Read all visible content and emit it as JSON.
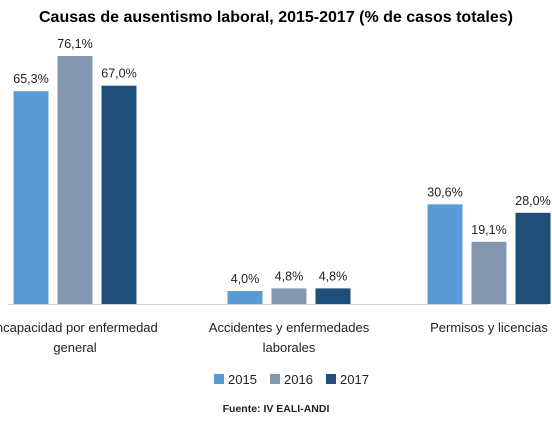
{
  "chart_data": {
    "type": "bar",
    "title": "Causas de ausentismo laboral, 2015-2017 (% de casos totales)",
    "categories": [
      [
        "Incapacidad por enfermedad",
        "general"
      ],
      [
        "Accidentes y enfermedades",
        "laborales"
      ],
      [
        "Permisos y licencias"
      ]
    ],
    "series": [
      {
        "name": "2015",
        "color": "#5b9bd5",
        "values": [
          65.3,
          4.0,
          30.6
        ],
        "labels": [
          "65,3%",
          "4,0%",
          "30,6%"
        ]
      },
      {
        "name": "2016",
        "color": "#8497b0",
        "values": [
          76.1,
          4.8,
          19.1
        ],
        "labels": [
          "76,1%",
          "4,8%",
          "19,1%"
        ]
      },
      {
        "name": "2017",
        "color": "#1f4e79",
        "values": [
          67.0,
          4.8,
          28.0
        ],
        "labels": [
          "67,0%",
          "4,8%",
          "28,0%"
        ]
      }
    ],
    "ylim": [
      0,
      76.1
    ],
    "grid": false,
    "legend_position": "bottom",
    "source": "Fuente: IV EALI-ANDI"
  }
}
